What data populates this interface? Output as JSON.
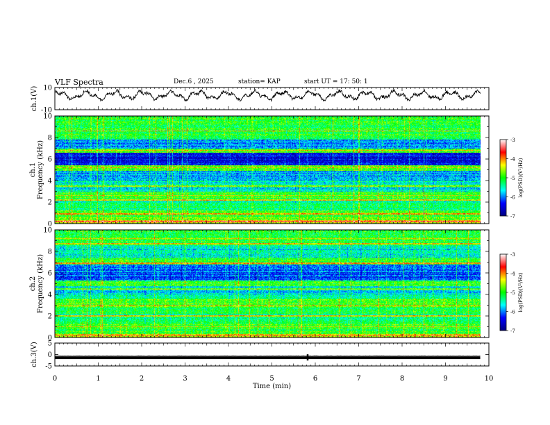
{
  "header": {
    "title": "VLF Spectra",
    "date": "Dec.6 , 2025",
    "station": "station= KAP",
    "start": "start  UT =   17: 50: 1"
  },
  "chart_data": [
    {
      "type": "line",
      "panel": "ch1-waveform",
      "ylabel": "ch.1(V)",
      "ylim": [
        -10,
        10
      ],
      "ytick_labels": [
        "10",
        "-10"
      ],
      "xlim": [
        0,
        10
      ],
      "x_end": 9.8,
      "mean": 3,
      "amplitude": 5
    },
    {
      "type": "heatmap",
      "panel": "ch1-spectrogram",
      "ylabel": "ch.1\nFrequency (kHz)",
      "ylabel_line1": "ch.1",
      "ylabel_line2": "Frequency (kHz)",
      "ylim": [
        0,
        10
      ],
      "ytick_labels": [
        "0",
        "2",
        "4",
        "6",
        "8",
        "10"
      ],
      "xlim": [
        0,
        10
      ],
      "x_end": 9.8,
      "frequency_bands": [
        {
          "f": [
            0,
            0.3
          ],
          "level": -4.4
        },
        {
          "f": [
            0.3,
            1.2
          ],
          "level": -4.9
        },
        {
          "f": [
            1.2,
            2.4
          ],
          "level": -5.3
        },
        {
          "f": [
            2.4,
            3.0
          ],
          "level": -5.0
        },
        {
          "f": [
            3.0,
            4.0
          ],
          "level": -5.6
        },
        {
          "f": [
            4.0,
            4.9
          ],
          "level": -5.9
        },
        {
          "f": [
            4.9,
            5.4
          ],
          "level": -4.9
        },
        {
          "f": [
            5.4,
            6.6
          ],
          "level": -6.4
        },
        {
          "f": [
            6.6,
            7.0
          ],
          "level": -4.9
        },
        {
          "f": [
            7.0,
            7.8
          ],
          "level": -6.0
        },
        {
          "f": [
            7.8,
            10.0
          ],
          "level": -5.1
        }
      ],
      "strong_lines_khz": [
        0.2,
        0.9,
        2.2,
        2.6,
        3.5,
        5.2,
        6.8,
        8.6
      ],
      "colorbar": {
        "label": "log(PSD)(V²/Hz)",
        "range": [
          -7,
          -3
        ],
        "tick_labels": [
          "-3",
          "-4",
          "-5",
          "-6",
          "-7"
        ],
        "colors": [
          "#000080",
          "#0000ff",
          "#00ffff",
          "#00ff00",
          "#ffff00",
          "#ff0000",
          "#ffffff"
        ]
      }
    },
    {
      "type": "heatmap",
      "panel": "ch2-spectrogram",
      "ylabel": "ch.2\nFrequency (kHz)",
      "ylabel_line1": "ch.2",
      "ylabel_line2": "Frequency (kHz)",
      "ylim": [
        0,
        10
      ],
      "ytick_labels": [
        "0",
        "2",
        "4",
        "6",
        "8",
        "10"
      ],
      "xlim": [
        0,
        10
      ],
      "x_end": 9.8,
      "frequency_bands": [
        {
          "f": [
            0,
            0.3
          ],
          "level": -4.4
        },
        {
          "f": [
            0.3,
            1.3
          ],
          "level": -5.0
        },
        {
          "f": [
            1.3,
            2.8
          ],
          "level": -5.3
        },
        {
          "f": [
            2.8,
            3.6
          ],
          "level": -4.9
        },
        {
          "f": [
            3.6,
            4.8
          ],
          "level": -5.6
        },
        {
          "f": [
            4.8,
            5.3
          ],
          "level": -5.0
        },
        {
          "f": [
            5.3,
            6.8
          ],
          "level": -6.1
        },
        {
          "f": [
            6.8,
            7.4
          ],
          "level": -5.0
        },
        {
          "f": [
            7.4,
            8.6
          ],
          "level": -5.6
        },
        {
          "f": [
            8.6,
            10.0
          ],
          "level": -5.1
        }
      ],
      "strong_lines_khz": [
        0.15,
        1.0,
        2.0,
        3.0,
        4.5,
        6.9,
        8.7,
        9.2
      ],
      "colorbar": {
        "label": "log(PSD)(V²/Hz)",
        "range": [
          -7,
          -3
        ],
        "tick_labels": [
          "-3",
          "-4",
          "-5",
          "-6",
          "-7"
        ],
        "colors": [
          "#000080",
          "#0000ff",
          "#00ffff",
          "#00ff00",
          "#ffff00",
          "#ff0000",
          "#ffffff"
        ]
      }
    },
    {
      "type": "line",
      "panel": "ch3-waveform",
      "ylabel": "ch.3(V)",
      "ylim": [
        -5,
        5
      ],
      "ytick_labels": [
        "5",
        "0",
        "-5"
      ],
      "xlim": [
        0,
        10
      ],
      "x_end": 9.8,
      "center": -1.4,
      "half_width": 0.6
    }
  ],
  "xaxis": {
    "label": "Time  (min)",
    "tick_labels": [
      "0",
      "1",
      "2",
      "3",
      "4",
      "5",
      "6",
      "7",
      "8",
      "9",
      "10"
    ]
  }
}
